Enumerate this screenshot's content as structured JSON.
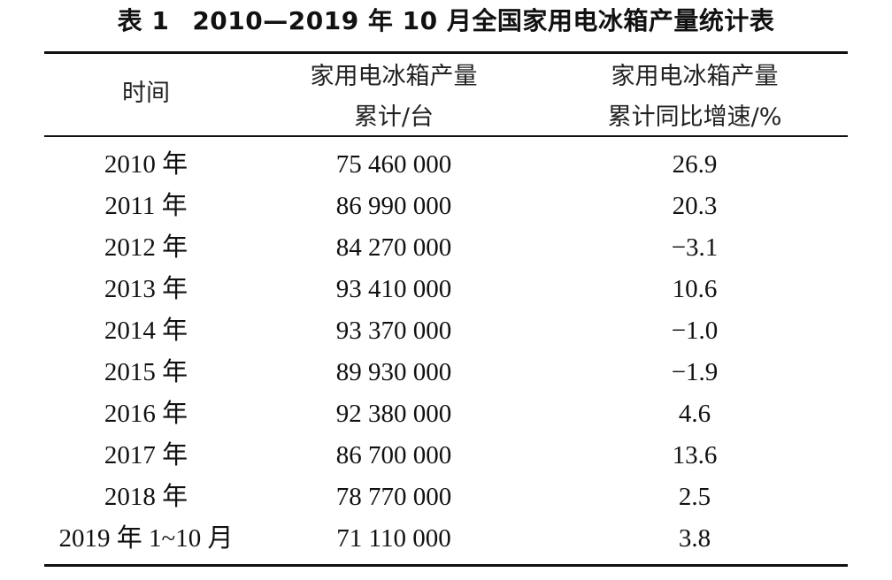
{
  "caption": {
    "label": "表 1",
    "title": "2010—2019 年 10 月全国家用电冰箱产量统计表"
  },
  "table": {
    "headers": {
      "time": "时间",
      "production_line1": "家用电冰箱产量",
      "production_line2": "累计/台",
      "growth_line1": "家用电冰箱产量",
      "growth_line2": "累计同比增速/%"
    },
    "rows": [
      {
        "time": "2010 年",
        "production": "75 460 000",
        "growth": "26.9"
      },
      {
        "time": "2011 年",
        "production": "86 990 000",
        "growth": "20.3"
      },
      {
        "time": "2012 年",
        "production": "84 270 000",
        "growth": "−3.1"
      },
      {
        "time": "2013 年",
        "production": "93 410 000",
        "growth": "10.6"
      },
      {
        "time": "2014 年",
        "production": "93 370 000",
        "growth": "−1.0"
      },
      {
        "time": "2015 年",
        "production": "89 930 000",
        "growth": "−1.9"
      },
      {
        "time": "2016 年",
        "production": "92 380 000",
        "growth": "4.6"
      },
      {
        "time": "2017 年",
        "production": "86 700 000",
        "growth": "13.6"
      },
      {
        "time": "2018 年",
        "production": "78 770 000",
        "growth": "2.5"
      },
      {
        "time": "2019 年 1~10 月",
        "production": "71 110 000",
        "growth": "3.8"
      }
    ]
  }
}
